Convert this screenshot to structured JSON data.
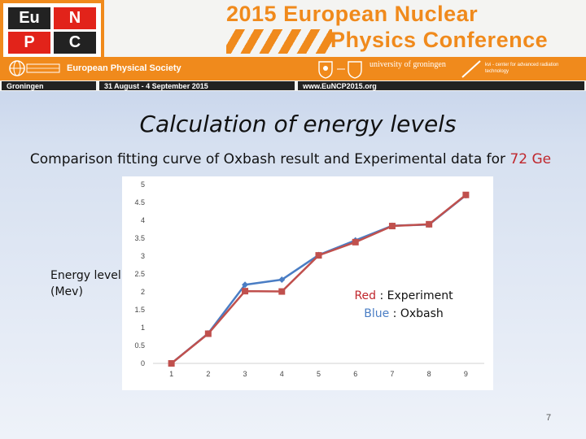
{
  "banner": {
    "logo": {
      "cells": [
        "Eu",
        "N",
        "P",
        "C"
      ]
    },
    "conference_title_line1": "2015 European Nuclear",
    "conference_title_line2": "Physics Conference",
    "eps_name": "European Physical Society",
    "university_name": "university of groningen",
    "kvi_name": "kvi - center for advanced radiation technology",
    "city": "Groningen",
    "dates": "31 August - 4 September 2015",
    "website": "www.EuNCP2015.org",
    "brand_color": "#f08a1c"
  },
  "slide": {
    "title": "Calculation of energy levels",
    "subtitle_prefix": "Comparison fitting curve of Oxbash result and Experimental data for ",
    "subtitle_highlight": "72 Ge",
    "y_axis_label_line1": "Energy level",
    "y_axis_label_line2": "(Mev)",
    "legend_red_word": "Red",
    "legend_red_rest": " : Experiment",
    "legend_blue_word": "Blue",
    "legend_blue_rest": " : Oxbash",
    "page_number": "7"
  },
  "chart_data": {
    "type": "line",
    "x": [
      1,
      2,
      3,
      4,
      5,
      6,
      7,
      8,
      9
    ],
    "ylim": [
      0,
      5
    ],
    "y_ticks": [
      "0",
      "0.5",
      "1",
      "1.5",
      "2",
      "2.5",
      "3",
      "3.5",
      "4",
      "4.5",
      "5"
    ],
    "grid": false,
    "series": [
      {
        "color": "#4a7dc4",
        "marker": "diamond",
        "values": [
          0,
          0.84,
          2.2,
          2.34,
          3.03,
          3.44,
          3.85,
          3.88,
          4.7
        ]
      },
      {
        "color": "#c0504d",
        "marker": "square",
        "values": [
          0,
          0.83,
          2.02,
          2.01,
          3.02,
          3.39,
          3.84,
          3.89,
          4.71
        ]
      }
    ]
  }
}
